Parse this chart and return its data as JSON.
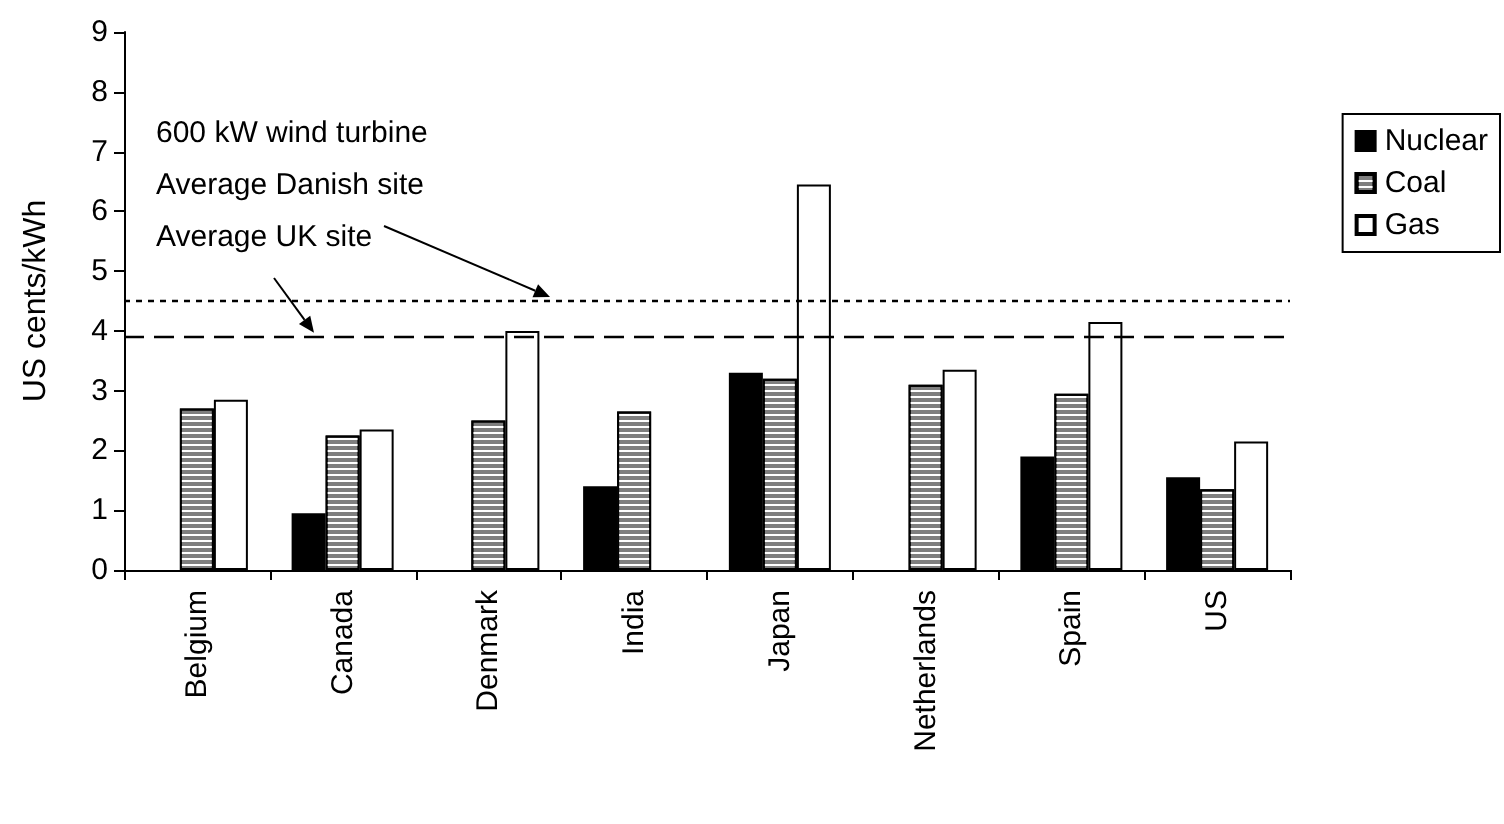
{
  "chart_data": {
    "type": "bar",
    "ylabel": "US cents/kWh",
    "categories": [
      "Belgium",
      "Canada",
      "Denmark",
      "India",
      "Japan",
      "Netherlands",
      "Spain",
      "US"
    ],
    "series": [
      {
        "name": "Nuclear",
        "color": "#000000",
        "values": [
          null,
          0.95,
          null,
          1.4,
          3.3,
          null,
          1.9,
          1.55
        ]
      },
      {
        "name": "Coal",
        "color": "#7f7f7f",
        "values": [
          2.7,
          2.25,
          2.5,
          2.65,
          3.2,
          3.1,
          2.95,
          1.35
        ]
      },
      {
        "name": "Gas",
        "color": "#ffffff",
        "values": [
          2.85,
          2.35,
          4.0,
          null,
          6.45,
          3.35,
          4.15,
          2.15
        ]
      }
    ],
    "ylim": [
      0,
      9
    ],
    "yticks": [
      0,
      1,
      2,
      3,
      4,
      5,
      6,
      7,
      8,
      9
    ],
    "grid": false,
    "legend": "right",
    "ref_lines": [
      {
        "axis": "y",
        "value": 4.5,
        "label": "Average Danish site",
        "line_style": "dotted",
        "color": "#000000"
      },
      {
        "axis": "y",
        "value": 3.9,
        "label": "Average UK site",
        "line_style": "dashed",
        "color": "#000000"
      }
    ],
    "annotations": [
      "600 kW wind turbine"
    ]
  }
}
